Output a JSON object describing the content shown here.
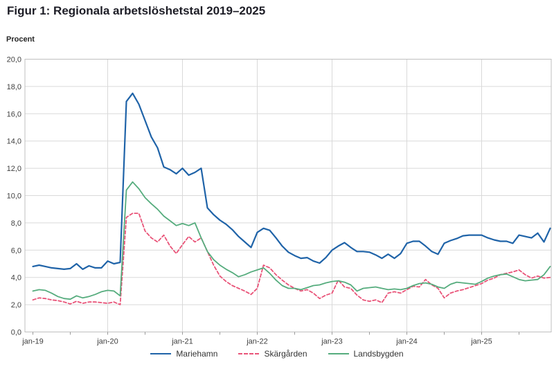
{
  "chart_data": {
    "type": "line",
    "title": "Figur 1: Regionala arbetslöshetstal 2019–2025",
    "ylabel": "Procent",
    "ylim": [
      0,
      20
    ],
    "y_tick_labels": [
      "20,0",
      "18,0",
      "16,0",
      "14,0",
      "12,0",
      "10,0",
      "8,0",
      "6,0",
      "4,0",
      "2,0",
      "0,0"
    ],
    "x_tick_labels": [
      "jan-19",
      "jan-20",
      "jan-21",
      "jan-22",
      "jan-23",
      "jan-24",
      "jan-25"
    ],
    "x_start": "jan-19",
    "x_frequency": "monthly",
    "grid": true,
    "legend_position": "bottom",
    "colors": {
      "grid": "#d9d9d9",
      "plot_border": "#bfbfbf",
      "axis": "#9b9b9b",
      "tick_text": "#404040"
    },
    "series": [
      {
        "name": "Mariehamn",
        "key": "mariehamn",
        "color": "#1F63A8",
        "style": "solid",
        "values": [
          4.8,
          4.9,
          4.8,
          4.7,
          4.65,
          4.6,
          4.65,
          5.0,
          4.6,
          4.85,
          4.7,
          4.7,
          5.2,
          5.0,
          5.1,
          16.9,
          17.5,
          16.7,
          15.5,
          14.3,
          13.5,
          12.1,
          11.9,
          11.6,
          12.0,
          11.5,
          11.7,
          12.0,
          9.1,
          8.6,
          8.2,
          7.9,
          7.5,
          7.0,
          6.6,
          6.2,
          7.3,
          7.6,
          7.45,
          6.9,
          6.3,
          5.85,
          5.6,
          5.4,
          5.45,
          5.2,
          5.05,
          5.45,
          6.0,
          6.3,
          6.55,
          6.2,
          5.9,
          5.9,
          5.85,
          5.65,
          5.4,
          5.7,
          5.4,
          5.75,
          6.5,
          6.65,
          6.65,
          6.3,
          5.9,
          5.7,
          6.5,
          6.7,
          6.85,
          7.05,
          7.1,
          7.1,
          7.1,
          6.9,
          6.75,
          6.65,
          6.65,
          6.5,
          7.1,
          7.0,
          6.9,
          7.25,
          6.6,
          7.6
        ]
      },
      {
        "name": "Skärgården",
        "key": "skargarden",
        "color": "#E95378",
        "style": "dashed",
        "values": [
          2.35,
          2.5,
          2.45,
          2.35,
          2.3,
          2.2,
          2.05,
          2.25,
          2.1,
          2.2,
          2.2,
          2.15,
          2.1,
          2.2,
          2.0,
          8.4,
          8.7,
          8.7,
          7.4,
          6.9,
          6.6,
          7.1,
          6.3,
          5.75,
          6.4,
          7.0,
          6.6,
          6.9,
          5.9,
          4.9,
          4.1,
          3.7,
          3.4,
          3.2,
          3.0,
          2.75,
          3.2,
          4.9,
          4.7,
          4.2,
          3.8,
          3.45,
          3.2,
          3.0,
          3.1,
          2.85,
          2.45,
          2.7,
          2.85,
          3.8,
          3.3,
          3.2,
          2.7,
          2.35,
          2.25,
          2.35,
          2.15,
          2.85,
          2.95,
          2.85,
          3.1,
          3.35,
          3.3,
          3.85,
          3.45,
          3.2,
          2.5,
          2.85,
          3.0,
          3.1,
          3.25,
          3.4,
          3.55,
          3.8,
          3.95,
          4.2,
          4.3,
          4.4,
          4.55,
          4.2,
          3.95,
          4.1,
          3.95,
          4.0
        ]
      },
      {
        "name": "Landsbygden",
        "key": "landsbygden",
        "color": "#55AC7D",
        "style": "solid",
        "values": [
          3.0,
          3.1,
          3.05,
          2.85,
          2.6,
          2.45,
          2.4,
          2.65,
          2.5,
          2.6,
          2.75,
          2.95,
          3.05,
          3.0,
          2.65,
          10.4,
          11.0,
          10.5,
          9.85,
          9.4,
          9.0,
          8.5,
          8.15,
          7.8,
          7.95,
          7.8,
          8.0,
          6.9,
          5.9,
          5.3,
          4.9,
          4.6,
          4.35,
          4.05,
          4.2,
          4.4,
          4.55,
          4.7,
          4.3,
          3.8,
          3.4,
          3.2,
          3.2,
          3.1,
          3.25,
          3.4,
          3.45,
          3.6,
          3.7,
          3.75,
          3.65,
          3.45,
          3.0,
          3.2,
          3.25,
          3.3,
          3.2,
          3.1,
          3.15,
          3.1,
          3.2,
          3.4,
          3.55,
          3.6,
          3.5,
          3.3,
          3.2,
          3.5,
          3.65,
          3.6,
          3.55,
          3.5,
          3.7,
          3.95,
          4.1,
          4.2,
          4.25,
          4.05,
          3.85,
          3.75,
          3.8,
          3.85,
          4.2,
          4.8
        ]
      }
    ]
  }
}
